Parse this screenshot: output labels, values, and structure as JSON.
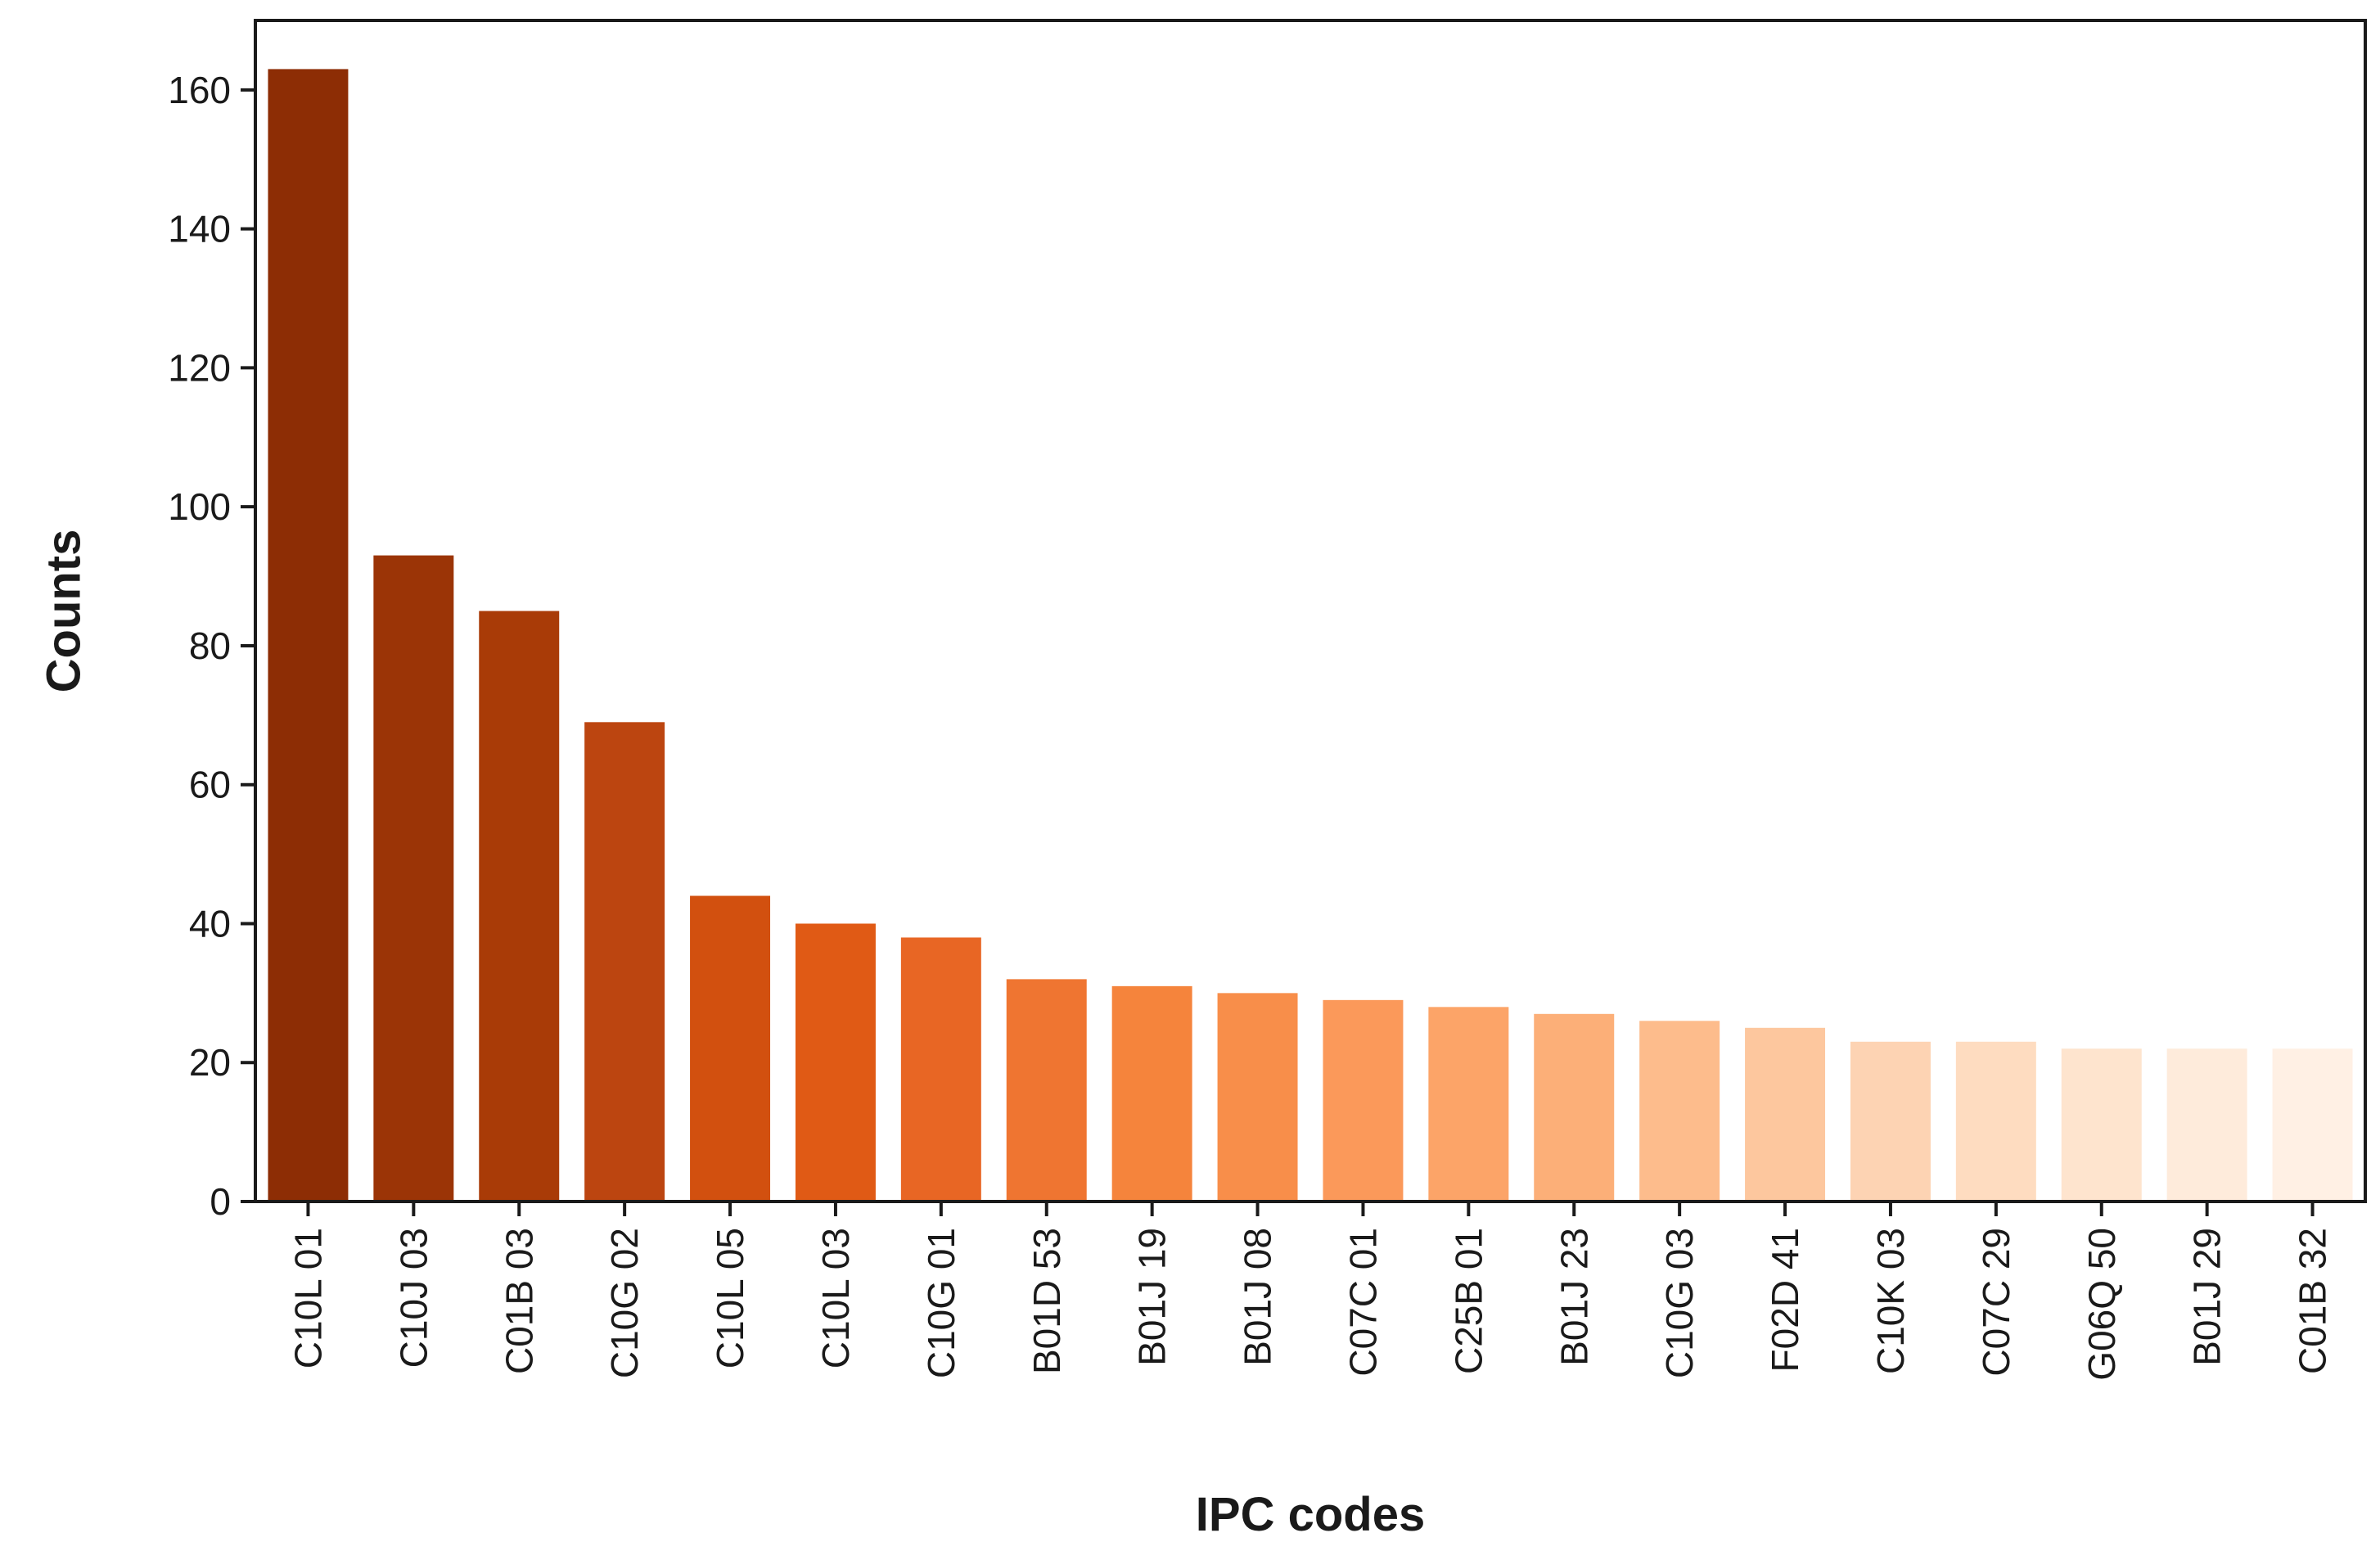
{
  "chart_data": {
    "type": "bar",
    "xlabel": "IPC codes",
    "ylabel": "Counts",
    "ylim": [
      0,
      170
    ],
    "yticks": [
      0,
      20,
      40,
      60,
      80,
      100,
      120,
      140,
      160
    ],
    "grid": false,
    "legend": "none",
    "categories": [
      "C10L 01",
      "C10J 03",
      "C01B 03",
      "C10G 02",
      "C10L 05",
      "C10L 03",
      "C10G 01",
      "B01D 53",
      "B01J 19",
      "B01J 08",
      "C07C 01",
      "C25B 01",
      "B01J 23",
      "C10G 03",
      "F02D 41",
      "C10K 03",
      "C07C 29",
      "G06Q 50",
      "B01J 29",
      "C01B 32"
    ],
    "values": [
      163,
      93,
      85,
      69,
      44,
      40,
      38,
      32,
      31,
      30,
      29,
      28,
      27,
      26,
      25,
      23,
      23,
      22,
      22,
      22
    ],
    "colors": [
      "#8d2d05",
      "#9b3406",
      "#a93b07",
      "#bc4510",
      "#d2500f",
      "#e05a15",
      "#e86624",
      "#ef7531",
      "#f5843c",
      "#f88e4a",
      "#fb995a",
      "#fca468",
      "#fcaf78",
      "#fdbc8c",
      "#fdc79e",
      "#fdd3b3",
      "#fedcc0",
      "#fee4ce",
      "#feebdb",
      "#fff0e4"
    ]
  }
}
